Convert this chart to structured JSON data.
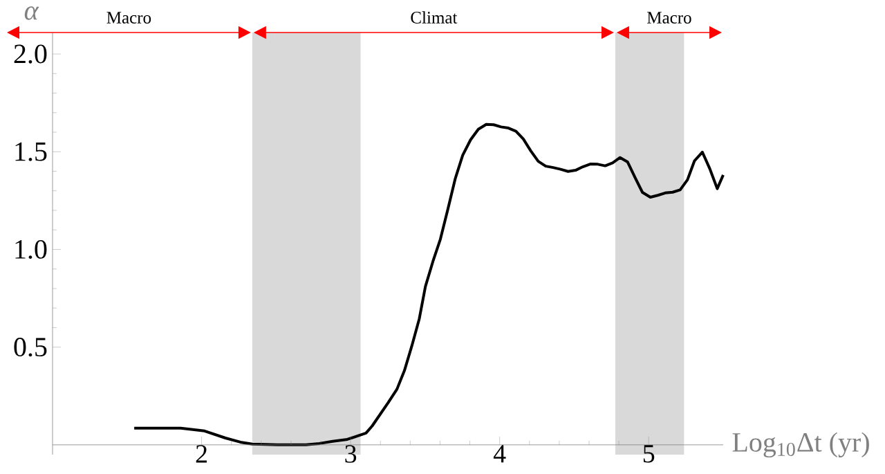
{
  "chart_data": {
    "type": "line",
    "xlabel": "Log$_{10}$Δt (yr)",
    "ylabel": "α",
    "x": [
      1.548,
      1.86,
      2.02,
      2.16,
      2.26,
      2.34,
      2.51,
      2.7,
      2.79,
      2.88,
      2.978,
      3.103,
      3.144,
      3.252,
      3.311,
      3.361,
      3.411,
      3.461,
      3.502,
      3.552,
      3.602,
      3.652,
      3.702,
      3.752,
      3.805,
      3.857,
      3.91,
      3.96,
      4.009,
      4.059,
      4.109,
      4.159,
      4.209,
      4.259,
      4.309,
      4.359,
      4.409,
      4.459,
      4.509,
      4.558,
      4.608,
      4.658,
      4.708,
      4.758,
      4.808,
      4.858,
      4.908,
      4.958,
      5.011,
      5.061,
      5.111,
      5.161,
      5.211,
      5.26,
      5.307,
      5.36,
      5.41,
      5.46,
      5.5
    ],
    "series": [
      {
        "color": "#000000",
        "values": [
          0.085,
          0.085,
          0.071,
          0.035,
          0.014,
          0.004,
          0.0,
          0.0,
          0.007,
          0.018,
          0.028,
          0.06,
          0.096,
          0.216,
          0.285,
          0.38,
          0.507,
          0.646,
          0.811,
          0.938,
          1.052,
          1.204,
          1.362,
          1.482,
          1.561,
          1.615,
          1.64,
          1.638,
          1.627,
          1.621,
          1.605,
          1.565,
          1.504,
          1.451,
          1.426,
          1.419,
          1.41,
          1.399,
          1.405,
          1.423,
          1.437,
          1.436,
          1.428,
          1.443,
          1.47,
          1.448,
          1.369,
          1.292,
          1.267,
          1.277,
          1.289,
          1.293,
          1.305,
          1.356,
          1.453,
          1.498,
          1.413,
          1.311,
          1.381
        ]
      }
    ],
    "xlim": [
      1.0,
      5.5
    ],
    "ylim": [
      -0.05,
      2.11
    ],
    "xticks": [
      2,
      3,
      4,
      5
    ],
    "yticks": [
      0.5,
      {
        "value": 1.0,
        "label": "1.0"
      },
      {
        "value": 1.5,
        "label": "1.5"
      },
      {
        "value": 2.0,
        "label": "2.0"
      }
    ],
    "bands": [
      {
        "axis": "x",
        "from": 2.34,
        "to": 3.067,
        "color": "#d9d9d9"
      },
      {
        "axis": "x",
        "from": 4.776,
        "to": 5.237,
        "color": "#d9d9d9"
      }
    ],
    "annotations": [
      "Macro",
      "Climat",
      "Macro"
    ],
    "marker": "none",
    "line_style": "solid"
  }
}
